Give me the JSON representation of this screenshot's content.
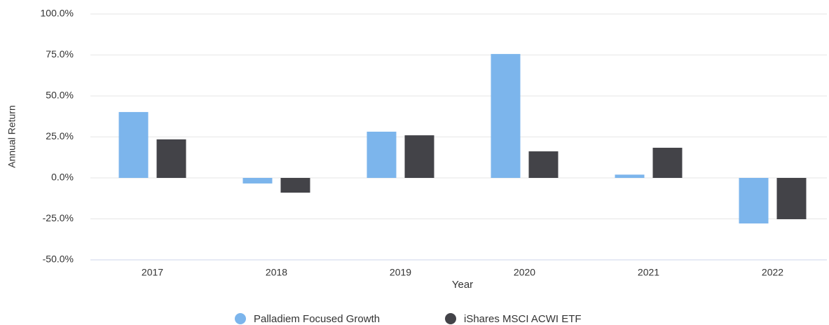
{
  "chart_data": {
    "type": "bar",
    "categories": [
      "2017",
      "2018",
      "2019",
      "2020",
      "2021",
      "2022"
    ],
    "series": [
      {
        "name": "Palladiem Focused Growth",
        "color": "#7cb5ec",
        "values": [
          40.2,
          -3.4,
          28.2,
          75.6,
          2.0,
          -27.8
        ]
      },
      {
        "name": "iShares MSCI ACWI ETF",
        "color": "#434348",
        "values": [
          23.5,
          -9.0,
          26.0,
          16.2,
          18.4,
          -25.2
        ]
      }
    ],
    "ylabel": "Annual Return",
    "xlabel": "Year",
    "ylim": [
      -50,
      100
    ],
    "yticks": [
      {
        "value": -50,
        "label": "-50.0%"
      },
      {
        "value": -25,
        "label": "-25.0%"
      },
      {
        "value": 0,
        "label": "0.0%"
      },
      {
        "value": 25,
        "label": "25.0%"
      },
      {
        "value": 50,
        "label": "50.0%"
      },
      {
        "value": 75,
        "label": "75.0%"
      },
      {
        "value": 100,
        "label": "100.0%"
      }
    ],
    "grid": true,
    "legend": "bottom"
  }
}
